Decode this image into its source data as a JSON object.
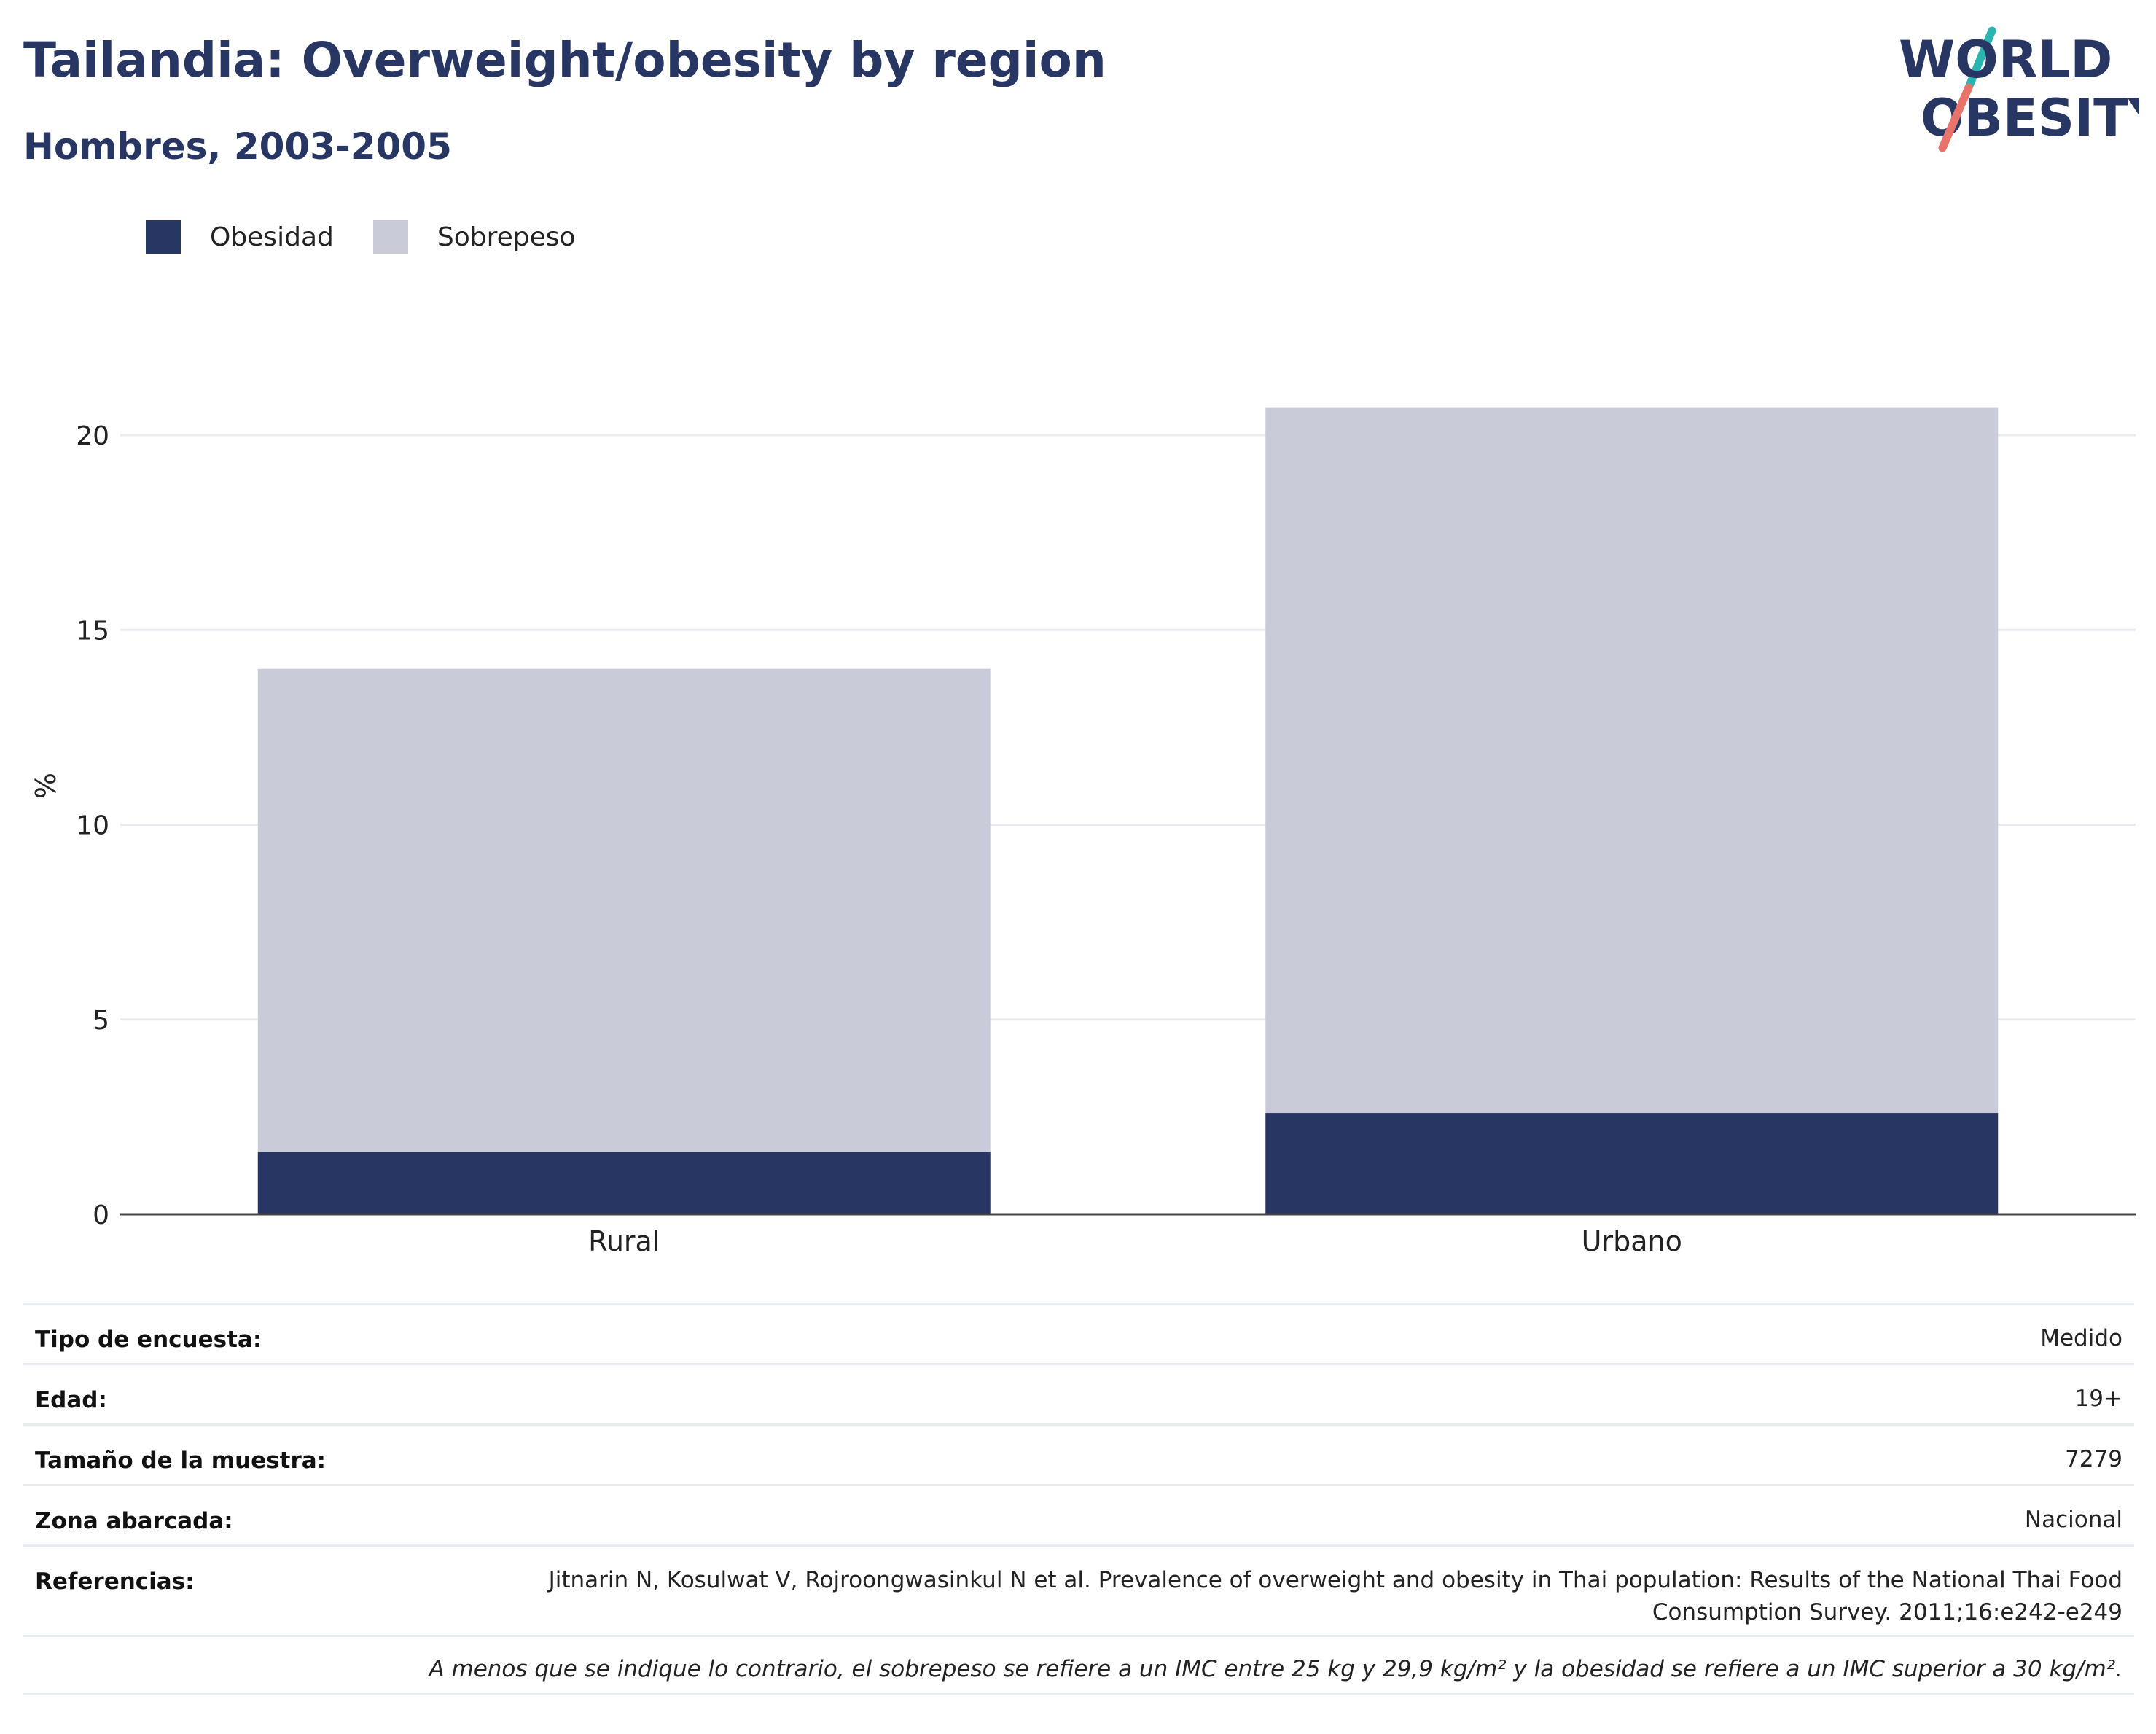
{
  "header": {
    "title": "Tailandia: Overweight/obesity by region",
    "subtitle": "Hombres, 2003-2005"
  },
  "logo": {
    "line1": "WORLD",
    "line2": "OBESITY",
    "colors": {
      "text": "#283664",
      "teal": "#2bb5b0",
      "coral": "#e8736a"
    }
  },
  "chart_data": {
    "type": "bar",
    "stacked": true,
    "categories": [
      "Rural",
      "Urbano"
    ],
    "series": [
      {
        "name": "Obesidad",
        "values": [
          1.6,
          2.6
        ],
        "color": "#283664"
      },
      {
        "name": "Sobrepeso",
        "values": [
          12.4,
          18.1
        ],
        "color": "#c9ccd8"
      }
    ],
    "ylabel": "%",
    "ylim": [
      0,
      22
    ],
    "yticks": [
      0,
      5,
      10,
      15,
      20
    ],
    "grid": true,
    "legend": "top-left"
  },
  "info": {
    "rows": [
      {
        "label": "Tipo de encuesta:",
        "value": "Medido"
      },
      {
        "label": "Edad:",
        "value": "19+"
      },
      {
        "label": "Tamaño de la muestra:",
        "value": "7279"
      },
      {
        "label": "Zona abarcada:",
        "value": "Nacional"
      },
      {
        "label": "Referencias:",
        "value": "Jitnarin N, Kosulwat V, Rojroongwasinkul N et al. Prevalence of overweight and obesity in Thai population: Results of the National Thai Food Consumption Survey. 2011;16:e242-e249"
      }
    ],
    "footnote": "A menos que se indique lo contrario, el sobrepeso se refiere a un IMC entre 25 kg y 29,9 kg/m² y la obesidad se refiere a un IMC superior a 30 kg/m²."
  }
}
